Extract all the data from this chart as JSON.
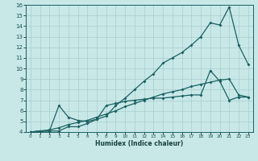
{
  "xlabel": "Humidex (Indice chaleur)",
  "background_color": "#c8e8e8",
  "grid_color": "#a8cccc",
  "line_color": "#1a6060",
  "xlim": [
    -0.5,
    23.5
  ],
  "ylim": [
    4,
    16
  ],
  "xticks": [
    0,
    1,
    2,
    3,
    4,
    5,
    6,
    7,
    8,
    9,
    10,
    11,
    12,
    13,
    14,
    15,
    16,
    17,
    18,
    19,
    20,
    21,
    22,
    23
  ],
  "yticks": [
    4,
    5,
    6,
    7,
    8,
    9,
    10,
    11,
    12,
    13,
    14,
    15,
    16
  ],
  "line1_x": [
    0,
    1,
    2,
    3,
    4,
    5,
    6,
    7,
    8,
    9,
    10,
    11,
    12,
    13,
    14,
    15,
    16,
    17,
    18,
    19,
    20,
    21,
    22,
    23
  ],
  "line1_y": [
    4.0,
    4.1,
    4.1,
    4.1,
    4.5,
    4.5,
    4.8,
    5.2,
    5.5,
    6.5,
    7.2,
    8.0,
    8.8,
    9.5,
    10.5,
    11.0,
    11.5,
    12.2,
    13.0,
    14.3,
    14.1,
    15.8,
    12.2,
    10.4
  ],
  "line2_x": [
    0,
    2,
    3,
    4,
    5,
    6,
    7,
    8,
    9,
    10,
    11,
    12,
    13,
    14,
    15,
    16,
    17,
    18,
    19,
    20,
    21,
    22,
    23
  ],
  "line2_y": [
    4.0,
    4.1,
    6.5,
    5.4,
    5.1,
    5.0,
    5.2,
    6.5,
    6.7,
    6.9,
    7.0,
    7.1,
    7.2,
    7.2,
    7.3,
    7.4,
    7.5,
    7.5,
    9.8,
    8.8,
    7.0,
    7.3,
    7.3
  ],
  "line3_x": [
    0,
    1,
    2,
    3,
    4,
    5,
    6,
    7,
    8,
    9,
    10,
    11,
    12,
    13,
    14,
    15,
    16,
    17,
    18,
    19,
    20,
    21,
    22,
    23
  ],
  "line3_y": [
    4.0,
    4.1,
    4.2,
    4.4,
    4.7,
    4.9,
    5.1,
    5.4,
    5.7,
    6.0,
    6.4,
    6.7,
    7.0,
    7.3,
    7.6,
    7.8,
    8.0,
    8.3,
    8.5,
    8.7,
    8.9,
    9.0,
    7.5,
    7.3
  ]
}
